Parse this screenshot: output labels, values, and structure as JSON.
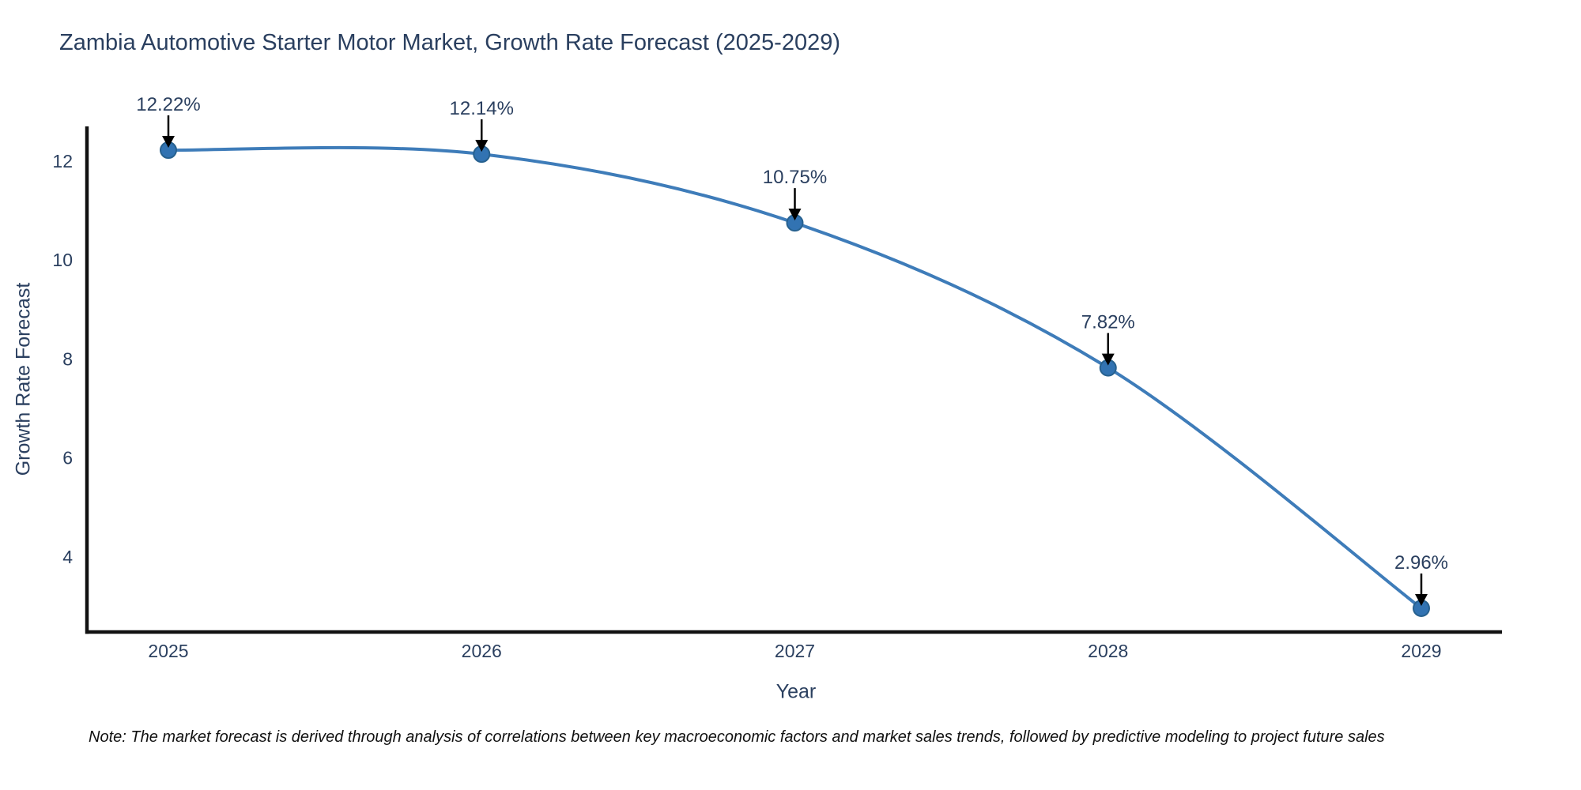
{
  "title": "Zambia Automotive Starter Motor Market, Growth Rate Forecast (2025-2029)",
  "note": "Note: The market forecast is derived through analysis of correlations between key macroeconomic factors and market sales trends, followed by predictive modeling to project future sales",
  "chart_data": {
    "type": "line",
    "title": "Zambia Automotive Starter Motor Market, Growth Rate Forecast (2025-2029)",
    "xlabel": "Year",
    "ylabel": "Growth Rate Forecast",
    "x": [
      2025,
      2026,
      2027,
      2028,
      2029
    ],
    "series": [
      {
        "name": "Growth Rate Forecast",
        "values": [
          12.22,
          12.14,
          10.75,
          7.82,
          2.96
        ]
      }
    ],
    "annotations": [
      "12.22%",
      "12.14%",
      "10.75%",
      "7.82%",
      "2.96%"
    ],
    "yticks": [
      4,
      6,
      8,
      10,
      12
    ],
    "ylim": [
      2.48,
      12.7
    ],
    "grid": false,
    "legend": "none",
    "line_shape": "spline",
    "colors": {
      "line": "#3e7cb9",
      "marker_fill": "#3273b2",
      "marker_edge": "#27618f",
      "axis": "#111111",
      "arrow": "#000000",
      "text": "#2a3f5f"
    }
  }
}
